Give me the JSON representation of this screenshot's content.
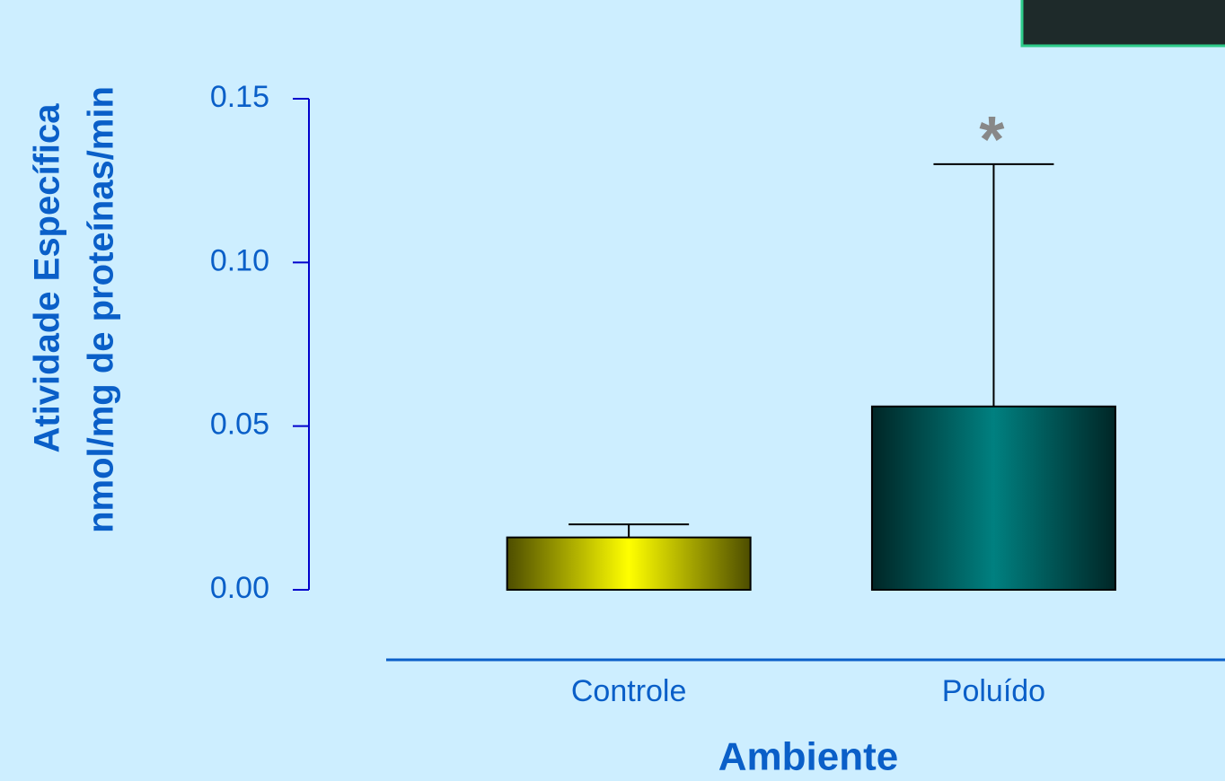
{
  "chart_data": {
    "type": "bar",
    "ylabel": [
      "Atividade Específica",
      "nmol/mg de proteínas/min"
    ],
    "xlabel": "Ambiente",
    "categories": [
      "Controle",
      "Poluído"
    ],
    "values": [
      0.016,
      0.056
    ],
    "errors": [
      0.004,
      0.074
    ],
    "colors": [
      "#ffff00",
      "#008080"
    ],
    "annotation": "*",
    "ylim": [
      0,
      0.15
    ],
    "yticks": [
      {
        "value": 0,
        "label": "0.00"
      },
      0.05,
      {
        "value": 0.1,
        "label": "0.10"
      },
      {
        "value": 0.15,
        "label": "0.15"
      }
    ]
  }
}
